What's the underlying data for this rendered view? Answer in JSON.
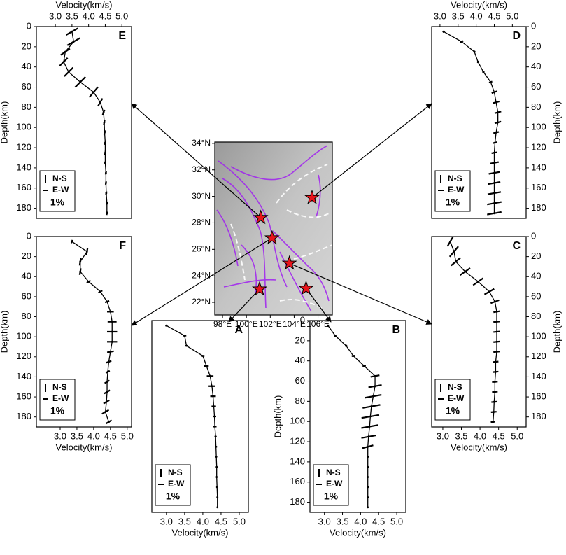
{
  "chart_data": [
    {
      "type": "line",
      "label": "E",
      "xlabel": "Velocity(km/s)",
      "ylabel": "Depth(km)",
      "color": "#000000",
      "xlim": [
        2.43,
        5.29
      ],
      "xticks": [
        {
          "value": 3,
          "label": "3.0"
        },
        3.5,
        {
          "value": 4,
          "label": "4.0"
        },
        4.5,
        {
          "value": 5,
          "label": "5.0"
        }
      ],
      "ylim": [
        0,
        190
      ],
      "yticks": [
        0,
        20,
        40,
        60,
        80,
        100,
        120,
        140,
        160,
        180
      ],
      "depth": [
        5,
        15,
        25,
        35,
        45,
        55,
        65,
        75,
        85,
        95,
        105,
        115,
        125,
        135,
        145,
        155,
        165,
        175,
        185
      ],
      "values": [
        3.5,
        3.55,
        3.3,
        3.25,
        3.4,
        3.75,
        4.15,
        4.35,
        4.45,
        4.47,
        4.48,
        4.5,
        4.5,
        4.5,
        4.52,
        4.52,
        4.53,
        4.55,
        4.55
      ],
      "anisotropy": {
        "amplitude": [
          1.2,
          1.3,
          1.0,
          1.0,
          1.1,
          1.3,
          1.2,
          0.8,
          0.5,
          0.4,
          0.4,
          0.4,
          0.4,
          0.3,
          0.3,
          0.3,
          0.3,
          0.3,
          0.3
        ],
        "azimuth": [
          60,
          60,
          55,
          45,
          45,
          45,
          40,
          30,
          20,
          10,
          10,
          10,
          10,
          10,
          10,
          10,
          10,
          10,
          10
        ]
      },
      "legend": [
        "N-S",
        "E-W"
      ],
      "scale": {
        "value": 1,
        "label": "1%"
      },
      "legend_loc": "lower-left"
    },
    {
      "type": "line",
      "label": "D",
      "xlabel": "Velocity(km/s)",
      "ylabel": "Depth(km)",
      "color": "#000000",
      "xlim": [
        2.77,
        5.38
      ],
      "xticks": [
        {
          "value": 3,
          "label": "3.0"
        },
        3.5,
        {
          "value": 4,
          "label": "4.0"
        },
        4.5,
        {
          "value": 5,
          "label": "5.0"
        }
      ],
      "ylim": [
        0,
        190
      ],
      "yticks": [
        0,
        20,
        40,
        60,
        80,
        100,
        120,
        140,
        160,
        180
      ],
      "depth": [
        5,
        15,
        25,
        35,
        45,
        55,
        65,
        75,
        85,
        95,
        105,
        115,
        125,
        135,
        145,
        155,
        165,
        175,
        185
      ],
      "values": [
        3.1,
        3.6,
        3.95,
        4.05,
        4.2,
        4.4,
        4.5,
        4.55,
        4.6,
        4.6,
        4.55,
        4.52,
        4.5,
        4.5,
        4.5,
        4.5,
        4.5,
        4.5,
        4.5
      ],
      "anisotropy": {
        "amplitude": [
          0.2,
          0.3,
          0.2,
          0.2,
          0.2,
          0.3,
          0.5,
          0.6,
          0.6,
          0.6,
          0.5,
          0.4,
          0.5,
          0.8,
          1.0,
          1.1,
          1.2,
          1.3,
          1.3
        ],
        "azimuth": [
          60,
          60,
          60,
          60,
          70,
          70,
          70,
          75,
          75,
          75,
          75,
          75,
          80,
          80,
          80,
          80,
          80,
          80,
          80
        ]
      },
      "legend": [
        "N-S",
        "E-W"
      ],
      "scale": {
        "value": 1,
        "label": "1%"
      },
      "legend_loc": "lower-left"
    },
    {
      "type": "line",
      "label": "F",
      "xlabel": "Velocity(km/s)",
      "ylabel": "Depth(km)",
      "color": "#000000",
      "xlim": [
        2.29,
        5.13
      ],
      "xticks": [
        {
          "value": 3,
          "label": "3.0"
        },
        3.5,
        {
          "value": 4,
          "label": "4.0"
        },
        4.5,
        {
          "value": 5,
          "label": "5.0"
        }
      ],
      "ylim": [
        0,
        190
      ],
      "yticks": [
        0,
        20,
        40,
        60,
        80,
        100,
        120,
        140,
        160,
        180
      ],
      "depth": [
        5,
        15,
        25,
        35,
        45,
        55,
        65,
        75,
        85,
        95,
        105,
        115,
        125,
        135,
        145,
        155,
        165,
        175,
        185
      ],
      "values": [
        3.35,
        3.8,
        3.6,
        3.6,
        3.85,
        4.2,
        4.4,
        4.5,
        4.55,
        4.55,
        4.55,
        4.5,
        4.45,
        4.42,
        4.4,
        4.4,
        4.38,
        4.35,
        4.45
      ],
      "anisotropy": {
        "amplitude": [
          0.3,
          0.6,
          0.7,
          0.6,
          0.4,
          0.4,
          0.4,
          0.6,
          0.8,
          0.9,
          0.9,
          0.6,
          0.5,
          0.4,
          0.5,
          0.6,
          0.6,
          0.7,
          0.6
        ],
        "azimuth": [
          20,
          10,
          10,
          10,
          60,
          60,
          70,
          90,
          90,
          90,
          90,
          80,
          70,
          60,
          60,
          60,
          60,
          60,
          60
        ]
      },
      "legend": [
        "N-S",
        "E-W"
      ],
      "scale": {
        "value": 1,
        "label": "1%"
      },
      "legend_loc": "lower-left"
    },
    {
      "type": "line",
      "label": "C",
      "xlabel": "Velocity(km/s)",
      "ylabel": "Depth(km)",
      "color": "#000000",
      "xlim": [
        2.7,
        5.24
      ],
      "xticks": [
        {
          "value": 3,
          "label": "3.0"
        },
        3.5,
        {
          "value": 4,
          "label": "4.0"
        },
        4.5,
        {
          "value": 5,
          "label": "5.0"
        }
      ],
      "ylim": [
        0,
        190
      ],
      "yticks": [
        0,
        20,
        40,
        60,
        80,
        100,
        120,
        140,
        160,
        180
      ],
      "depth": [
        5,
        15,
        25,
        35,
        45,
        55,
        65,
        75,
        85,
        95,
        105,
        115,
        125,
        135,
        145,
        155,
        165,
        175,
        185
      ],
      "values": [
        3.2,
        3.3,
        3.35,
        3.6,
        3.95,
        4.25,
        4.4,
        4.45,
        4.45,
        4.45,
        4.45,
        4.45,
        4.42,
        4.42,
        4.4,
        4.4,
        4.38,
        4.37,
        4.35
      ],
      "anisotropy": {
        "amplitude": [
          1.0,
          1.2,
          1.1,
          1.1,
          1.1,
          1.0,
          0.8,
          0.6,
          0.6,
          0.6,
          0.6,
          0.6,
          0.5,
          0.5,
          0.5,
          0.5,
          0.5,
          0.5,
          0.4
        ],
        "azimuth": [
          30,
          40,
          50,
          55,
          55,
          60,
          70,
          80,
          85,
          85,
          85,
          85,
          85,
          85,
          85,
          85,
          85,
          85,
          85
        ]
      },
      "legend": [
        "N-S",
        "E-W"
      ],
      "scale": {
        "value": 1,
        "label": "1%"
      },
      "legend_loc": "lower-left"
    },
    {
      "type": "line",
      "label": "A",
      "xlabel": "Velocity(km/s)",
      "color": "#000000",
      "xlim": [
        2.6,
        5.25
      ],
      "xticks": [
        {
          "value": 3,
          "label": "3.0"
        },
        3.5,
        {
          "value": 4,
          "label": "4.0"
        },
        4.5,
        {
          "value": 5,
          "label": "5.0"
        }
      ],
      "ylim": [
        0,
        190
      ],
      "depth": [
        5,
        15,
        25,
        35,
        45,
        55,
        65,
        75,
        85,
        95,
        105,
        115,
        125,
        135,
        145,
        155,
        165,
        175,
        185
      ],
      "values": [
        3.0,
        3.5,
        3.55,
        4.0,
        4.1,
        4.2,
        4.25,
        4.28,
        4.3,
        4.32,
        4.33,
        4.35,
        4.36,
        4.37,
        4.38,
        4.38,
        4.39,
        4.4,
        4.4
      ],
      "anisotropy": {
        "amplitude": [
          0.2,
          0.3,
          0.3,
          0.3,
          0.4,
          0.6,
          0.6,
          0.5,
          0.4,
          0.3,
          0.3,
          0.2,
          0.2,
          0.1,
          0.1,
          0.1,
          0.1,
          0.1,
          0.1
        ],
        "azimuth": [
          90,
          90,
          90,
          90,
          90,
          90,
          90,
          90,
          90,
          90,
          90,
          90,
          90,
          90,
          90,
          90,
          90,
          90,
          90
        ]
      },
      "legend": [
        "N-S",
        "E-W"
      ],
      "scale": {
        "value": 1,
        "label": "1%"
      },
      "legend_loc": "lower-left"
    },
    {
      "type": "line",
      "label": "B",
      "xlabel": "Velocity(km/s)",
      "ylabel": "Depth(km)",
      "color": "#000000",
      "xlim": [
        2.6,
        5.25
      ],
      "xticks": [
        {
          "value": 3,
          "label": "3.0"
        },
        3.5,
        {
          "value": 4,
          "label": "4.0"
        },
        4.5,
        {
          "value": 5,
          "label": "5.0"
        }
      ],
      "ylim": [
        0,
        190
      ],
      "yticks": [
        0,
        20,
        40,
        60,
        80,
        100,
        120,
        140,
        160,
        180
      ],
      "depth": [
        5,
        15,
        25,
        35,
        45,
        55,
        65,
        75,
        85,
        95,
        105,
        115,
        125,
        135,
        145,
        155,
        165,
        175,
        185
      ],
      "values": [
        3.1,
        3.3,
        3.6,
        3.8,
        4.1,
        4.4,
        4.4,
        4.35,
        4.3,
        4.27,
        4.25,
        4.22,
        4.2,
        4.2,
        4.2,
        4.2,
        4.2,
        4.2,
        4.2
      ],
      "anisotropy": {
        "amplitude": [
          0.1,
          0.2,
          0.2,
          0.3,
          0.3,
          0.8,
          1.2,
          1.5,
          1.6,
          1.6,
          1.5,
          1.3,
          1.0,
          0.2,
          0.1,
          0.1,
          0.1,
          0.1,
          0.1
        ],
        "azimuth": [
          80,
          80,
          80,
          80,
          80,
          80,
          80,
          80,
          80,
          80,
          80,
          80,
          75,
          80,
          80,
          80,
          80,
          80,
          80
        ]
      },
      "legend": [
        "N-S",
        "E-W"
      ],
      "scale": {
        "value": 1,
        "label": "1%"
      },
      "legend_loc": "lower-left"
    },
    {
      "type": "map",
      "color": "#e8141b",
      "xlim": [
        97.35,
        107.2
      ],
      "xticks": [
        {
          "value": 98,
          "label": "98°E"
        },
        {
          "value": 100,
          "label": "100°E"
        },
        {
          "value": 102,
          "label": "102°E"
        },
        {
          "value": 104,
          "label": "104°E"
        },
        {
          "value": 106,
          "label": "106°E"
        }
      ],
      "ylim": [
        21.05,
        34.1
      ],
      "yticks": [
        {
          "value": 22,
          "label": "22°N"
        },
        {
          "value": 24,
          "label": "24°N"
        },
        {
          "value": 26,
          "label": "26°N"
        },
        {
          "value": 28,
          "label": "28°N"
        },
        {
          "value": 30,
          "label": "30°N"
        },
        {
          "value": 32,
          "label": "32°N"
        },
        {
          "value": 34,
          "label": "34°N"
        }
      ],
      "x": [
        101.2,
        102.15,
        103.6,
        101.1,
        105.0,
        105.5
      ],
      "y": [
        28.4,
        26.86,
        24.95,
        23.0,
        23.05,
        29.9
      ]
    }
  ]
}
